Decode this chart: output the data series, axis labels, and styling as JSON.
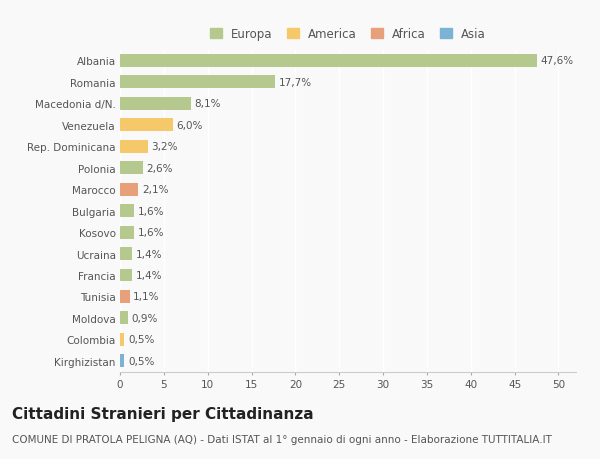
{
  "categories": [
    "Albania",
    "Romania",
    "Macedonia d/N.",
    "Venezuela",
    "Rep. Dominicana",
    "Polonia",
    "Marocco",
    "Bulgaria",
    "Kosovo",
    "Ucraina",
    "Francia",
    "Tunisia",
    "Moldova",
    "Colombia",
    "Kirghizistan"
  ],
  "values": [
    47.6,
    17.7,
    8.1,
    6.0,
    3.2,
    2.6,
    2.1,
    1.6,
    1.6,
    1.4,
    1.4,
    1.1,
    0.9,
    0.5,
    0.5
  ],
  "labels": [
    "47,6%",
    "17,7%",
    "8,1%",
    "6,0%",
    "3,2%",
    "2,6%",
    "2,1%",
    "1,6%",
    "1,6%",
    "1,4%",
    "1,4%",
    "1,1%",
    "0,9%",
    "0,5%",
    "0,5%"
  ],
  "continents": [
    "Europa",
    "Europa",
    "Europa",
    "America",
    "America",
    "Europa",
    "Africa",
    "Europa",
    "Europa",
    "Europa",
    "Europa",
    "Africa",
    "Europa",
    "America",
    "Asia"
  ],
  "continent_colors": {
    "Europa": "#b5c98e",
    "America": "#f5c96a",
    "Africa": "#e8a07a",
    "Asia": "#7ab3d4"
  },
  "legend_order": [
    "Europa",
    "America",
    "Africa",
    "Asia"
  ],
  "xlim": [
    0,
    52
  ],
  "xticks": [
    0,
    5,
    10,
    15,
    20,
    25,
    30,
    35,
    40,
    45,
    50
  ],
  "title": "Cittadini Stranieri per Cittadinanza",
  "subtitle": "COMUNE DI PRATOLA PELIGNA (AQ) - Dati ISTAT al 1° gennaio di ogni anno - Elaborazione TUTTITALIA.IT",
  "bg_color": "#f9f9f9",
  "grid_color": "#ffffff",
  "bar_height": 0.6,
  "title_fontsize": 11,
  "subtitle_fontsize": 7.5,
  "label_fontsize": 7.5,
  "tick_fontsize": 7.5,
  "legend_fontsize": 8.5
}
